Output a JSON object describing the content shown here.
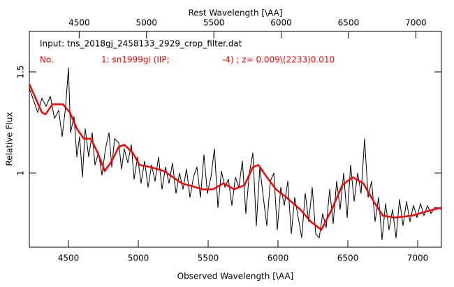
{
  "chart_data": {
    "type": "line",
    "title": "Rest Wavelength [\\AA]",
    "x_label": "Observed Wavelength [\\AA]",
    "y_label": "Relative Flux",
    "annotations": [
      {
        "text": "Input: tns_2018gj_2458133_2929_crop_filter.dat",
        "color": "#000000"
      },
      {
        "text": "No.",
        "color": "#ff0000"
      },
      {
        "text": "1: sn1999gi (IIP;",
        "color": "#ff0000"
      },
      {
        "text": "-4) ; z= 0.009\\(2233)0.010",
        "color": "#ff0000"
      }
    ],
    "xlim": [
      4220,
      7170
    ],
    "xticks": [
      4500,
      5000,
      5500,
      6000,
      6500,
      7000
    ],
    "x2lim": [
      4130,
      7190
    ],
    "x2ticks": [
      4500,
      5000,
      5500,
      6000,
      6500,
      7000
    ],
    "ylim": [
      0.634,
      1.7
    ],
    "yticks": [
      1,
      1.5
    ],
    "series": [
      {
        "color": "#000000",
        "width": 1,
        "x": [
          4220,
          4250,
          4280,
          4310,
          4340,
          4370,
          4400,
          4430,
          4455,
          4480,
          4500,
          4515,
          4540,
          4560,
          4580,
          4600,
          4620,
          4645,
          4670,
          4690,
          4715,
          4740,
          4765,
          4790,
          4810,
          4830,
          4860,
          4880,
          4900,
          4925,
          4950,
          4970,
          4995,
          5020,
          5045,
          5070,
          5095,
          5120,
          5145,
          5170,
          5195,
          5220,
          5245,
          5270,
          5295,
          5320,
          5345,
          5370,
          5395,
          5420,
          5445,
          5470,
          5495,
          5520,
          5545,
          5570,
          5595,
          5620,
          5645,
          5670,
          5695,
          5720,
          5745,
          5770,
          5795,
          5820,
          5845,
          5870,
          5895,
          5920,
          5945,
          5970,
          5995,
          6020,
          6045,
          6070,
          6095,
          6120,
          6145,
          6170,
          6195,
          6220,
          6245,
          6270,
          6295,
          6320,
          6345,
          6370,
          6395,
          6420,
          6445,
          6470,
          6495,
          6520,
          6545,
          6570,
          6595,
          6620,
          6645,
          6670,
          6695,
          6720,
          6745,
          6770,
          6795,
          6820,
          6845,
          6870,
          6895,
          6920,
          6945,
          6970,
          6995,
          7020,
          7045,
          7070,
          7095,
          7120,
          7145,
          7170
        ],
        "values": [
          1.42,
          1.36,
          1.3,
          1.37,
          1.33,
          1.38,
          1.27,
          1.31,
          1.18,
          1.33,
          1.52,
          1.2,
          1.28,
          1.08,
          1.18,
          0.98,
          1.22,
          1.08,
          1.2,
          1.04,
          1.1,
          0.99,
          1.12,
          1.2,
          1.03,
          1.17,
          1.15,
          1.02,
          1.12,
          1.05,
          1.14,
          0.97,
          1.08,
          0.95,
          1.06,
          0.93,
          1.04,
          0.96,
          1.08,
          0.92,
          1.03,
          0.95,
          1.05,
          0.9,
          1.0,
          0.92,
          1.02,
          0.88,
          0.98,
          1.03,
          0.88,
          1.09,
          0.9,
          0.98,
          1.12,
          0.83,
          1.01,
          0.93,
          0.97,
          0.84,
          0.98,
          0.93,
          1.06,
          0.8,
          1.0,
          1.1,
          0.74,
          1.03,
          0.88,
          0.74,
          0.96,
          1.0,
          0.72,
          0.93,
          0.84,
          0.96,
          0.7,
          0.88,
          0.78,
          0.68,
          0.9,
          0.76,
          0.93,
          0.7,
          0.68,
          0.8,
          0.73,
          0.92,
          0.75,
          0.96,
          0.82,
          1.0,
          0.78,
          1.04,
          0.86,
          1.0,
          0.9,
          1.17,
          0.88,
          0.96,
          0.76,
          0.88,
          0.67,
          0.85,
          0.72,
          0.82,
          0.68,
          0.87,
          0.74,
          0.86,
          0.76,
          0.84,
          0.78,
          0.85,
          0.79,
          0.84,
          0.8,
          0.83,
          0.83,
          0.82
        ]
      },
      {
        "color": "#ff0000",
        "width": 2.5,
        "x": [
          4220,
          4310,
          4335,
          4385,
          4460,
          4510,
          4560,
          4610,
          4660,
          4710,
          4760,
          4810,
          4860,
          4900,
          4960,
          5010,
          5085,
          5185,
          5310,
          5460,
          5535,
          5610,
          5685,
          5760,
          5820,
          5860,
          5910,
          5985,
          6060,
          6160,
          6235,
          6310,
          6385,
          6460,
          6535,
          6610,
          6685,
          6750,
          6835,
          6960,
          7060,
          7170
        ],
        "values": [
          1.44,
          1.3,
          1.29,
          1.34,
          1.34,
          1.3,
          1.22,
          1.17,
          1.17,
          1.1,
          1.01,
          1.06,
          1.13,
          1.14,
          1.1,
          1.04,
          1.03,
          1.01,
          0.95,
          0.92,
          0.92,
          0.95,
          0.92,
          0.94,
          1.03,
          1.04,
          0.99,
          0.92,
          0.88,
          0.82,
          0.76,
          0.72,
          0.82,
          0.94,
          0.98,
          0.95,
          0.86,
          0.79,
          0.78,
          0.79,
          0.81,
          0.83
        ]
      }
    ]
  }
}
